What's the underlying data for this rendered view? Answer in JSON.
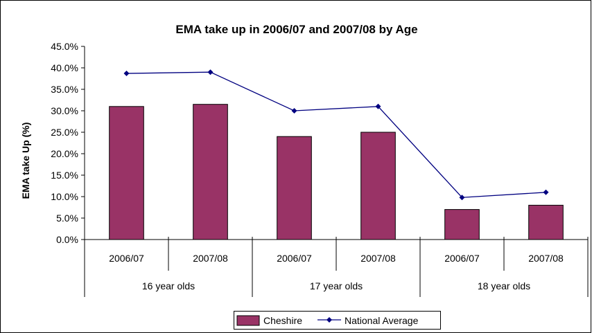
{
  "chart_data": {
    "type": "bar",
    "title": "EMA take up in 2006/07 and 2007/08 by Age",
    "ylabel": "EMA take Up (%)",
    "xlabel": "",
    "ylim": [
      0,
      45
    ],
    "yticks": [
      "0.0%",
      "5.0%",
      "10.0%",
      "15.0%",
      "20.0%",
      "25.0%",
      "30.0%",
      "35.0%",
      "40.0%",
      "45.0%"
    ],
    "categories": [
      "2006/07",
      "2007/08",
      "2006/07",
      "2007/08",
      "2006/07",
      "2007/08"
    ],
    "groups": [
      {
        "label": "16 year olds",
        "span": 2
      },
      {
        "label": "17 year olds",
        "span": 2
      },
      {
        "label": "18 year olds",
        "span": 2
      }
    ],
    "series": [
      {
        "name": "Cheshire",
        "kind": "bar",
        "color": "#993366",
        "values": [
          31.0,
          31.5,
          24.0,
          25.0,
          7.0,
          8.0
        ]
      },
      {
        "name": "National Average",
        "kind": "line",
        "color": "#000080",
        "values": [
          38.7,
          39.0,
          30.0,
          31.0,
          9.8,
          11.0
        ]
      }
    ],
    "grid": false,
    "legend": "bottom"
  }
}
